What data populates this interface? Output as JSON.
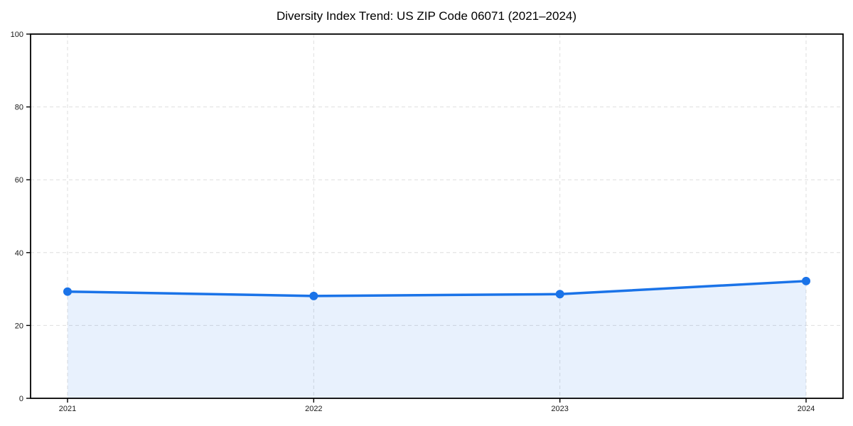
{
  "chart_data": {
    "type": "area",
    "title": "Diversity Index Trend: US ZIP Code 06071 (2021–2024)",
    "categories": [
      "2021",
      "2022",
      "2023",
      "2024"
    ],
    "values": [
      29.3,
      28.1,
      28.6,
      32.2
    ],
    "xlabel": "",
    "ylabel": "",
    "ylim": [
      0,
      100
    ],
    "yticks": [
      0,
      20,
      40,
      60,
      80,
      100
    ],
    "grid": true,
    "grid_style": "dashed",
    "legend_position": "none",
    "colors": {
      "line": "#1a73e8",
      "marker": "#1a73e8",
      "area_fill": "rgba(26,115,232,0.10)",
      "gridline": "#dedede",
      "spine": "#000000",
      "tick_text": "#1a1a1a",
      "background": "#ffffff"
    }
  }
}
